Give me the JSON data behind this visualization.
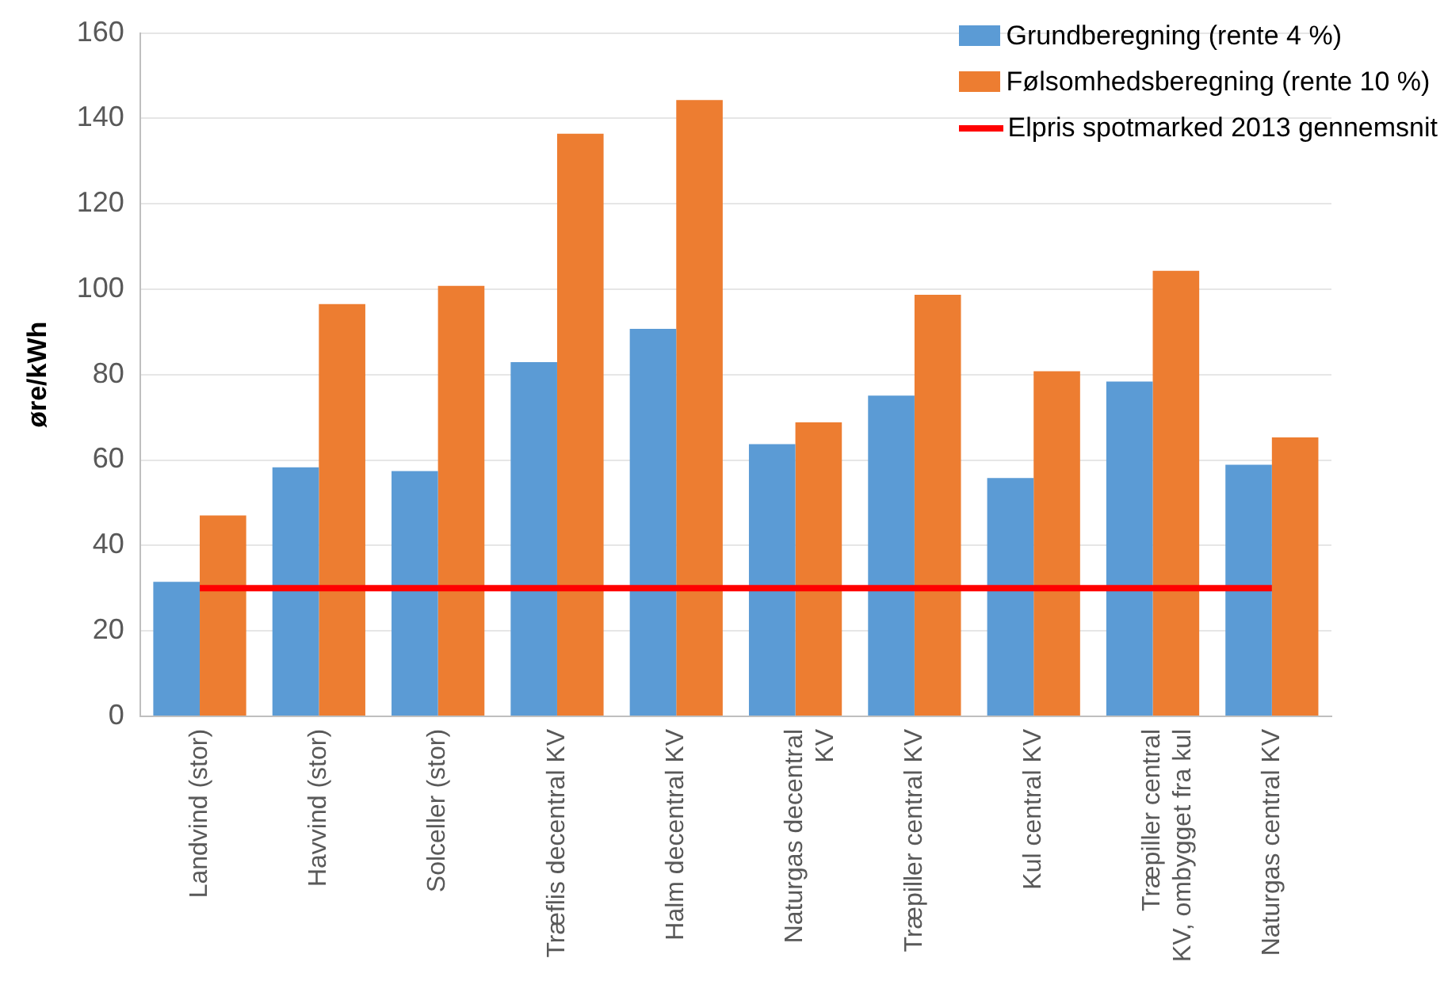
{
  "chart_data": {
    "type": "bar",
    "ylabel": "øre/kWh",
    "categories": [
      "Landvind (stor)",
      "Havvind (stor)",
      "Solceller (stor)",
      "Træflis decentral KV",
      "Halm decentral KV",
      "Naturgas decentral KV",
      "Træpiller central KV",
      "Kul central KV",
      "Træpiller central KV, ombygget fra kul",
      "Naturgas central KV"
    ],
    "series": [
      {
        "name": "Grundberegning (rente 4 %)",
        "color": "#5b9bd5",
        "values": [
          31.5,
          58.3,
          57.4,
          82.9,
          90.7,
          63.7,
          75.1,
          55.8,
          78.4,
          58.9
        ]
      },
      {
        "name": "Følsomhedsberegning (rente 10 %)",
        "color": "#ed7d31",
        "values": [
          47.0,
          96.5,
          100.8,
          136.4,
          144.3,
          68.8,
          98.7,
          80.8,
          104.3,
          65.3
        ]
      },
      {
        "name": "Elpris spotmarked 2013 gennemsnit",
        "type": "line",
        "color": "#ff0000",
        "values": [
          30,
          30,
          30,
          30,
          30,
          30,
          30,
          30,
          30,
          30
        ]
      }
    ],
    "ylim": [
      0,
      160
    ],
    "yticks": [
      0,
      20,
      40,
      60,
      80,
      100,
      120,
      140,
      160
    ],
    "grid": "y",
    "legend": "top right",
    "marker": "none"
  }
}
